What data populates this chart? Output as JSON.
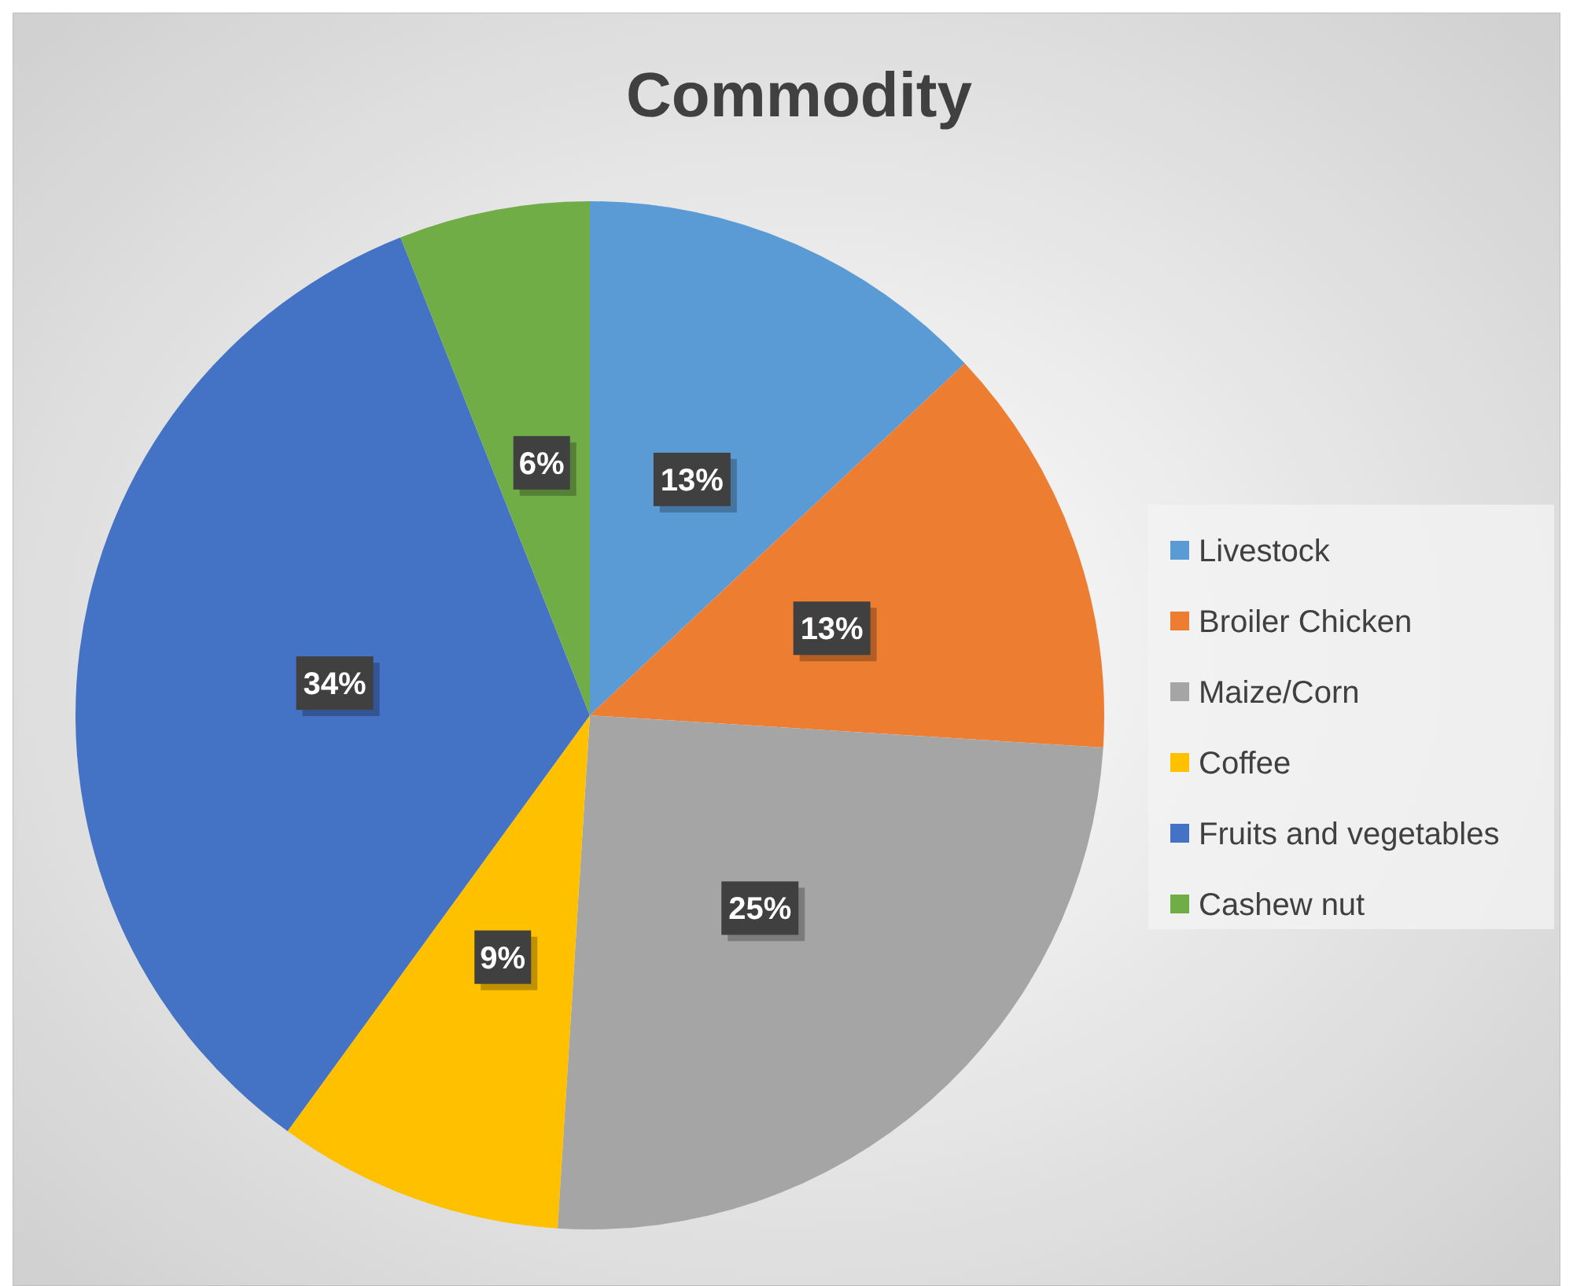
{
  "chart_data": {
    "type": "pie",
    "title": "Commodity",
    "categories": [
      "Livestock",
      "Broiler Chicken",
      "Maize/Corn",
      "Coffee",
      "Fruits and vegetables",
      "Cashew nut"
    ],
    "values": [
      13,
      13,
      25,
      9,
      34,
      6
    ],
    "colors": [
      "#5b9bd5",
      "#ed7d31",
      "#a5a5a5",
      "#ffc000",
      "#4472c4",
      "#70ad47"
    ],
    "value_labels": [
      "13%",
      "13%",
      "25%",
      "9%",
      "34%",
      "6%"
    ],
    "legend": "right"
  }
}
